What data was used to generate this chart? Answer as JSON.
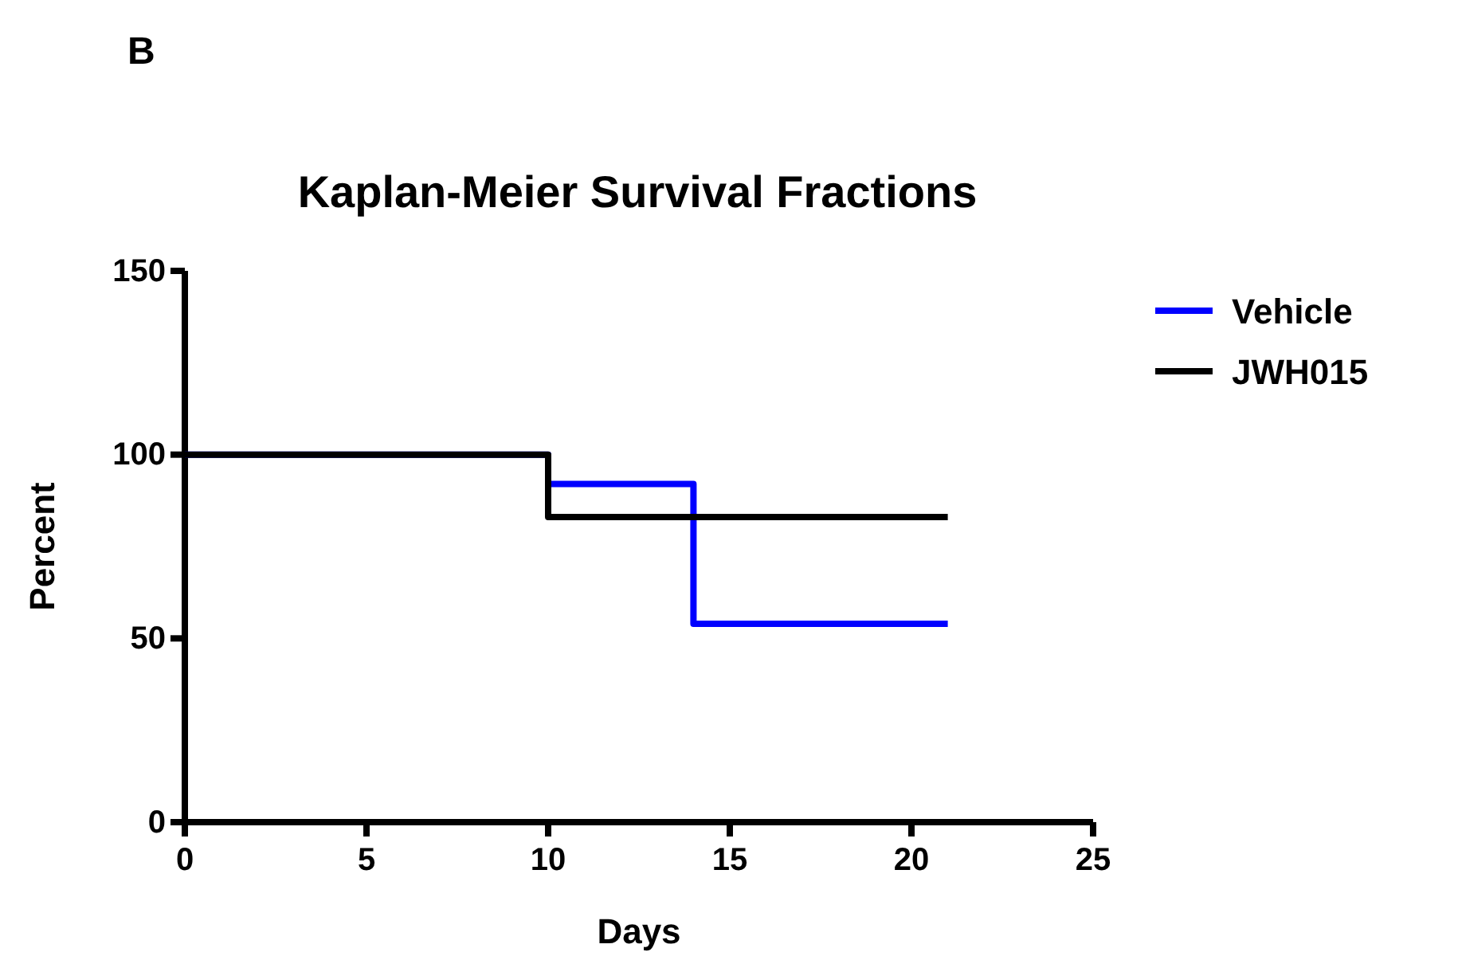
{
  "chart_data": {
    "type": "step",
    "title": "Kaplan-Meier Survival Fractions",
    "xlabel": "Days",
    "ylabel": "Percent",
    "annotations": [
      "B"
    ],
    "x": [
      0,
      10,
      14,
      21
    ],
    "series": [
      {
        "name": "Vehicle",
        "color": "#0000ff",
        "values": [
          100,
          92,
          54,
          54
        ]
      },
      {
        "name": "JWH015",
        "color": "#000000",
        "values": [
          100,
          83,
          83,
          83
        ]
      }
    ],
    "xlim": [
      0,
      25
    ],
    "xticks": [
      0,
      5,
      10,
      15,
      20,
      25
    ],
    "ylim": [
      0,
      150
    ],
    "yticks": [
      0,
      50,
      100,
      150
    ],
    "grid": false,
    "legend": "top right",
    "line_style": "solid"
  }
}
